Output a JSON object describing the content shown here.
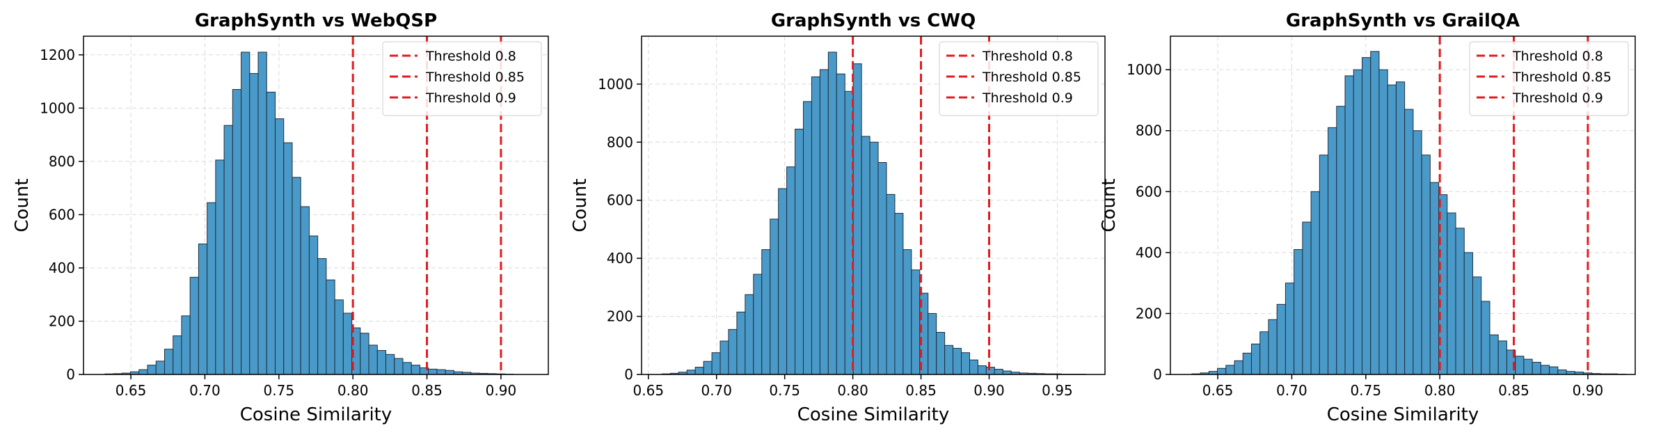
{
  "colors": {
    "bar_fill": "#4a9ac9",
    "bar_edge": "#1f2d3a",
    "threshold": "#e31a1c"
  },
  "chart_data": [
    {
      "type": "bar",
      "subtype": "histogram",
      "title": "GraphSynth vs WebQSP",
      "xlabel": "Cosine Similarity",
      "ylabel": "Count",
      "xlim": [
        0.618,
        0.932
      ],
      "ylim": [
        0,
        1270
      ],
      "xticks": [
        0.65,
        0.7,
        0.75,
        0.8,
        0.85,
        0.9
      ],
      "xtick_labels": [
        "0.65",
        "0.70",
        "0.75",
        "0.80",
        "0.85",
        "0.90"
      ],
      "yticks": [
        0,
        200,
        400,
        600,
        800,
        1000,
        1200
      ],
      "ytick_labels": [
        "0",
        "200",
        "400",
        "600",
        "800",
        "1000",
        "1200"
      ],
      "grid": true,
      "legend_position": "top-right",
      "bin_start": 0.6325,
      "bin_width": 0.00575,
      "values": [
        2,
        3,
        5,
        10,
        18,
        35,
        50,
        95,
        145,
        220,
        365,
        490,
        645,
        805,
        935,
        1070,
        1210,
        1130,
        1210,
        1060,
        960,
        870,
        740,
        630,
        520,
        435,
        355,
        280,
        230,
        175,
        155,
        110,
        90,
        75,
        60,
        45,
        35,
        25,
        20,
        18,
        15,
        10,
        8,
        5,
        4,
        3,
        2,
        1
      ],
      "thresholds": [
        {
          "value": 0.8,
          "label": "Threshold 0.8"
        },
        {
          "value": 0.85,
          "label": "Threshold 0.85"
        },
        {
          "value": 0.9,
          "label": "Threshold 0.9"
        }
      ]
    },
    {
      "type": "bar",
      "subtype": "histogram",
      "title": "GraphSynth vs CWQ",
      "xlabel": "Cosine Similarity",
      "ylabel": "Count",
      "xlim": [
        0.645,
        0.985
      ],
      "ylim": [
        0,
        1165
      ],
      "xticks": [
        0.65,
        0.7,
        0.75,
        0.8,
        0.85,
        0.9,
        0.95
      ],
      "xtick_labels": [
        "0.65",
        "0.70",
        "0.75",
        "0.80",
        "0.85",
        "0.90",
        "0.95"
      ],
      "yticks": [
        0,
        200,
        400,
        600,
        800,
        1000
      ],
      "ytick_labels": [
        "0",
        "200",
        "400",
        "600",
        "800",
        "1000"
      ],
      "grid": true,
      "legend_position": "top-right",
      "bin_start": 0.66,
      "bin_width": 0.0061,
      "values": [
        2,
        4,
        8,
        15,
        25,
        45,
        75,
        115,
        155,
        215,
        275,
        345,
        430,
        535,
        640,
        715,
        845,
        940,
        1025,
        1050,
        1110,
        1035,
        975,
        1070,
        820,
        800,
        730,
        620,
        555,
        430,
        360,
        280,
        210,
        145,
        100,
        90,
        75,
        50,
        30,
        25,
        18,
        12,
        8,
        5,
        4,
        3,
        2,
        2,
        1,
        1,
        1
      ],
      "thresholds": [
        {
          "value": 0.8,
          "label": "Threshold 0.8"
        },
        {
          "value": 0.85,
          "label": "Threshold 0.85"
        },
        {
          "value": 0.9,
          "label": "Threshold 0.9"
        }
      ]
    },
    {
      "type": "bar",
      "subtype": "histogram",
      "title": "GraphSynth vs GrailQA",
      "xlabel": "Cosine Similarity",
      "ylabel": "Count",
      "xlim": [
        0.618,
        0.932
      ],
      "ylim": [
        0,
        1110
      ],
      "xticks": [
        0.65,
        0.7,
        0.75,
        0.8,
        0.85,
        0.9
      ],
      "xtick_labels": [
        "0.65",
        "0.70",
        "0.75",
        "0.80",
        "0.85",
        "0.90"
      ],
      "yticks": [
        0,
        200,
        400,
        600,
        800,
        1000
      ],
      "ytick_labels": [
        "0",
        "200",
        "400",
        "600",
        "800",
        "1000"
      ],
      "grid": true,
      "legend_position": "top-right",
      "bin_start": 0.6325,
      "bin_width": 0.00575,
      "values": [
        2,
        5,
        10,
        20,
        30,
        45,
        70,
        100,
        140,
        180,
        230,
        300,
        410,
        500,
        600,
        720,
        810,
        880,
        980,
        1000,
        1040,
        1060,
        1000,
        950,
        960,
        870,
        800,
        720,
        630,
        590,
        530,
        480,
        400,
        320,
        240,
        130,
        110,
        80,
        60,
        50,
        40,
        30,
        25,
        15,
        10,
        8,
        5,
        3,
        2,
        2,
        1
      ],
      "thresholds": [
        {
          "value": 0.8,
          "label": "Threshold 0.8"
        },
        {
          "value": 0.85,
          "label": "Threshold 0.85"
        },
        {
          "value": 0.9,
          "label": "Threshold 0.9"
        }
      ]
    }
  ]
}
